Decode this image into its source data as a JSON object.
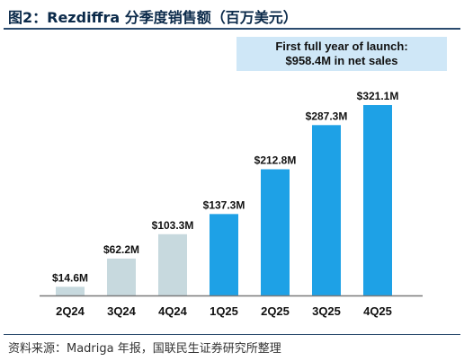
{
  "figure": {
    "title": "图2：Rezdiffra 分季度销售额（百万美元）",
    "source": "资料来源：Madriga 年报，国联民生证券研究所整理"
  },
  "callout": {
    "line1": "First full year of launch:",
    "line2": "$958.4M in net sales"
  },
  "chart_data": {
    "type": "bar",
    "title": "",
    "xlabel": "",
    "ylabel": "",
    "categories": [
      "2Q24",
      "3Q24",
      "4Q24",
      "1Q25",
      "2Q25",
      "3Q25",
      "4Q25"
    ],
    "values": [
      14.6,
      62.2,
      103.3,
      137.3,
      212.8,
      287.3,
      321.1
    ],
    "data_labels": [
      "$14.6M",
      "$62.2M",
      "$103.3M",
      "$137.3M",
      "$212.8M",
      "$287.3M",
      "$321.1M"
    ],
    "ylim": [
      0,
      321.1
    ],
    "grid": false,
    "legend": "none",
    "bar_colors": [
      "#c7d9de",
      "#c7d9de",
      "#c7d9de",
      "#1ea1e6",
      "#1ea1e6",
      "#1ea1e6",
      "#1ea1e6"
    ],
    "axis_color": "#7a7a7a"
  }
}
